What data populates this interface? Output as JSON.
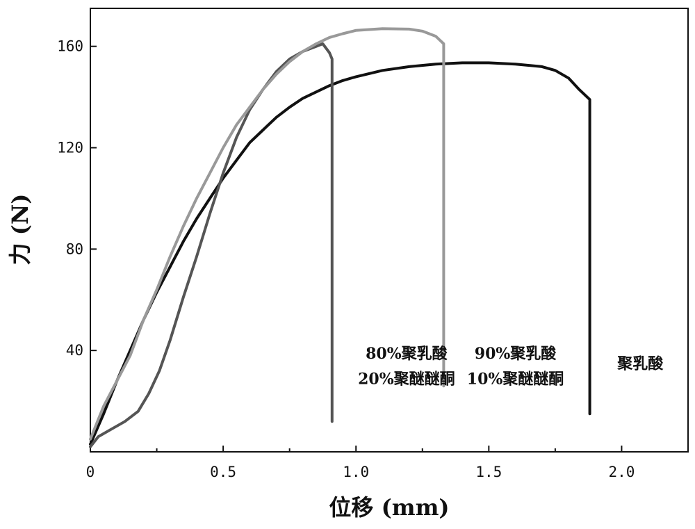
{
  "chart_data": {
    "type": "line",
    "title": "",
    "xlabel": "位移 (mm)",
    "ylabel": "力 (N)",
    "xlim": [
      0,
      2.25
    ],
    "ylim": [
      0,
      175
    ],
    "grid": false,
    "legend": "none",
    "x_ticks": [
      {
        "value": 0,
        "label": "0"
      },
      {
        "value": 0.5,
        "label": "0.5"
      },
      {
        "value": 1.0,
        "label": "1.0"
      },
      {
        "value": 1.5,
        "label": "1.5"
      },
      {
        "value": 2.0,
        "label": "2.0"
      }
    ],
    "x_minor_ticks": [
      0.25,
      0.75,
      1.25,
      1.75
    ],
    "y_ticks": [
      {
        "value": 40,
        "label": "40"
      },
      {
        "value": 80,
        "label": "80"
      },
      {
        "value": 120,
        "label": "120"
      },
      {
        "value": 160,
        "label": "160"
      }
    ],
    "series": [
      {
        "color": "#111111",
        "points": [
          [
            0,
            3
          ],
          [
            0.05,
            15
          ],
          [
            0.1,
            28
          ],
          [
            0.15,
            40
          ],
          [
            0.2,
            52
          ],
          [
            0.25,
            63
          ],
          [
            0.3,
            73
          ],
          [
            0.35,
            83
          ],
          [
            0.4,
            92
          ],
          [
            0.45,
            100
          ],
          [
            0.5,
            108
          ],
          [
            0.55,
            115
          ],
          [
            0.6,
            122
          ],
          [
            0.65,
            127
          ],
          [
            0.7,
            132
          ],
          [
            0.75,
            136
          ],
          [
            0.8,
            139.5
          ],
          [
            0.85,
            142
          ],
          [
            0.9,
            144.5
          ],
          [
            0.95,
            146.5
          ],
          [
            1.0,
            148
          ],
          [
            1.1,
            150.5
          ],
          [
            1.2,
            152
          ],
          [
            1.3,
            153
          ],
          [
            1.4,
            153.5
          ],
          [
            1.5,
            153.5
          ],
          [
            1.6,
            153
          ],
          [
            1.7,
            152
          ],
          [
            1.75,
            150.5
          ],
          [
            1.8,
            147.5
          ],
          [
            1.84,
            143
          ],
          [
            1.88,
            139
          ],
          [
            1.88,
            15
          ]
        ]
      },
      {
        "color": "#555555",
        "points": [
          [
            0,
            2
          ],
          [
            0.03,
            6
          ],
          [
            0.08,
            9
          ],
          [
            0.13,
            12
          ],
          [
            0.18,
            16
          ],
          [
            0.22,
            23
          ],
          [
            0.26,
            32
          ],
          [
            0.3,
            44
          ],
          [
            0.35,
            61
          ],
          [
            0.4,
            77
          ],
          [
            0.45,
            94
          ],
          [
            0.5,
            110
          ],
          [
            0.55,
            124
          ],
          [
            0.6,
            135
          ],
          [
            0.65,
            143
          ],
          [
            0.7,
            150
          ],
          [
            0.75,
            155
          ],
          [
            0.8,
            158
          ],
          [
            0.85,
            160
          ],
          [
            0.875,
            161
          ],
          [
            0.9,
            157.5
          ],
          [
            0.91,
            155
          ],
          [
            0.91,
            12
          ]
        ]
      },
      {
        "color": "#999999",
        "points": [
          [
            0,
            5
          ],
          [
            0.05,
            18
          ],
          [
            0.1,
            28
          ],
          [
            0.15,
            38
          ],
          [
            0.2,
            52
          ],
          [
            0.25,
            64
          ],
          [
            0.3,
            77
          ],
          [
            0.35,
            89
          ],
          [
            0.4,
            100
          ],
          [
            0.45,
            110
          ],
          [
            0.5,
            120
          ],
          [
            0.55,
            129
          ],
          [
            0.6,
            136
          ],
          [
            0.65,
            143
          ],
          [
            0.7,
            149
          ],
          [
            0.75,
            154
          ],
          [
            0.8,
            158
          ],
          [
            0.85,
            161
          ],
          [
            0.9,
            163.5
          ],
          [
            0.95,
            165
          ],
          [
            1.0,
            166.3
          ],
          [
            1.1,
            167
          ],
          [
            1.2,
            166.8
          ],
          [
            1.25,
            166
          ],
          [
            1.3,
            164
          ],
          [
            1.33,
            161
          ],
          [
            1.33,
            26
          ]
        ]
      }
    ],
    "annotations": [
      {
        "x": 1.19,
        "y_lines": [
          39,
          29
        ],
        "lines": [
          "80%聚乳酸",
          "20%聚醚醚酮"
        ]
      },
      {
        "x": 1.6,
        "y_lines": [
          39,
          29
        ],
        "lines": [
          "90%聚乳酸",
          "10%聚醚醚酮"
        ]
      },
      {
        "x": 2.07,
        "y_lines": [
          35
        ],
        "lines": [
          "聚乳酸"
        ]
      }
    ]
  }
}
